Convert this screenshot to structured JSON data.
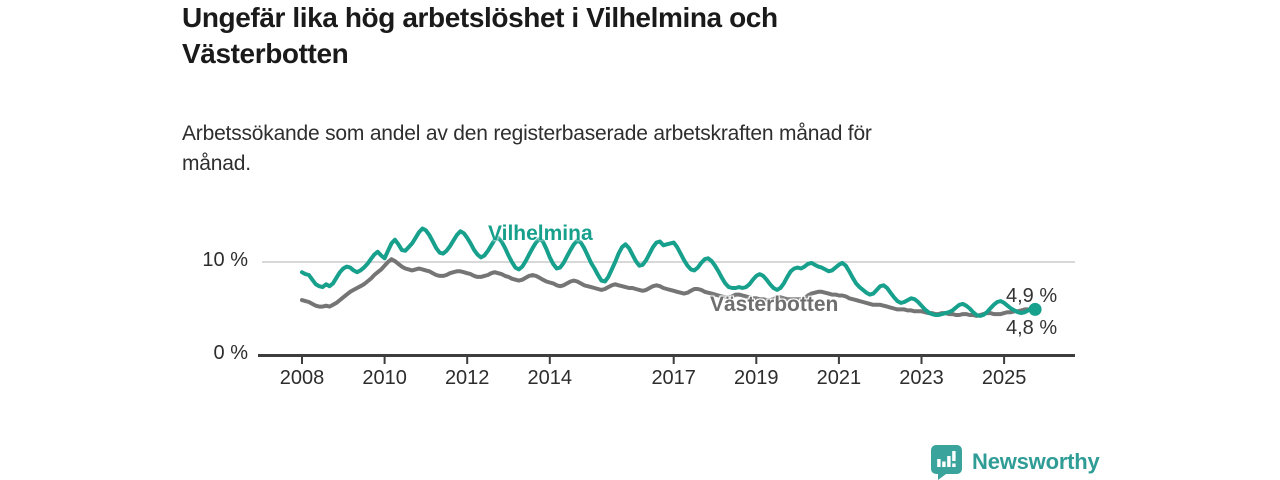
{
  "header": {
    "title_lines": [
      "Ungefär lika hög arbetslöshet i Vilhelmina och",
      "Västerbotten"
    ],
    "subtitle_lines": [
      "Arbetssökande som andel av den registerbaserade arbetskraften månad för",
      "månad."
    ]
  },
  "colors": {
    "vilhelmina_line": "#17a08c",
    "vasterbotten_line": "#757575",
    "gridline": "#cccccc",
    "axis": "#3d3d3d",
    "title_text": "#1a1a1a",
    "logo_teal": "#2f9d96"
  },
  "chart": {
    "y_ticks": [
      {
        "label": "10 %",
        "value": 10
      },
      {
        "label": "0 %",
        "value": 0
      }
    ],
    "x_ticks": [
      {
        "label": "2008",
        "year": 2008
      },
      {
        "label": "2010",
        "year": 2010
      },
      {
        "label": "2012",
        "year": 2012
      },
      {
        "label": "2014",
        "year": 2014
      },
      {
        "label": "2017",
        "year": 2017
      },
      {
        "label": "2019",
        "year": 2019
      },
      {
        "label": "2021",
        "year": 2021
      },
      {
        "label": "2023",
        "year": 2023
      },
      {
        "label": "2025",
        "year": 2025
      }
    ],
    "series_labels": {
      "vilhelmina": "Vilhelmina",
      "vasterbotten": "Västerbotten"
    },
    "end_labels": {
      "vilhelmina": "4,9 %",
      "vasterbotten": "4,8 %"
    }
  },
  "branding": {
    "name": "Newsworthy",
    "logo_icon": "speech-bubble-bar-chart"
  },
  "chart_data": {
    "type": "line",
    "title": "Ungefär lika hög arbetslöshet i Vilhelmina och Västerbotten",
    "subtitle": "Arbetssökande som andel av den registerbaserade arbetskraften månad för månad.",
    "unit": "%",
    "frequency": "monthly",
    "x_start": {
      "year": 2008,
      "month": 1
    },
    "x_end": {
      "year": 2025,
      "month": 10
    },
    "ylim": [
      0,
      14
    ],
    "grid_values": [
      10
    ],
    "latest_values": {
      "Vilhelmina": 4.9,
      "Västerbotten": 4.8
    },
    "series": [
      {
        "name": "Vilhelmina",
        "color": "#17a08c",
        "values": [
          8.9,
          8.7,
          8.6,
          8.1,
          7.6,
          7.4,
          7.3,
          7.6,
          7.4,
          7.7,
          8.3,
          8.9,
          9.3,
          9.5,
          9.4,
          9.1,
          8.9,
          9.1,
          9.4,
          9.8,
          10.3,
          10.8,
          11.1,
          10.7,
          10.4,
          11.2,
          12.0,
          12.4,
          11.9,
          11.3,
          11.2,
          11.6,
          12.0,
          12.6,
          13.2,
          13.6,
          13.4,
          12.9,
          12.2,
          11.5,
          11.0,
          10.9,
          11.2,
          11.7,
          12.3,
          12.9,
          13.3,
          13.1,
          12.6,
          12.0,
          11.3,
          10.8,
          10.5,
          10.7,
          11.2,
          11.8,
          12.4,
          12.6,
          12.2,
          11.5,
          10.7,
          10.0,
          9.4,
          9.2,
          9.5,
          10.1,
          10.8,
          11.5,
          12.1,
          12.5,
          12.2,
          11.4,
          10.5,
          9.8,
          9.3,
          9.4,
          9.9,
          10.6,
          11.3,
          11.9,
          12.3,
          12.1,
          11.5,
          10.7,
          9.9,
          9.3,
          8.6,
          8.0,
          7.9,
          8.4,
          9.2,
          10.0,
          10.9,
          11.6,
          11.9,
          11.5,
          10.8,
          10.1,
          9.6,
          9.7,
          10.2,
          10.9,
          11.6,
          12.1,
          12.2,
          11.8,
          11.9,
          12.0,
          12.1,
          11.6,
          10.9,
          10.2,
          9.6,
          9.2,
          9.1,
          9.4,
          9.9,
          10.3,
          10.4,
          10.1,
          9.6,
          9.0,
          8.3,
          7.7,
          7.3,
          7.2,
          7.2,
          7.3,
          7.2,
          7.3,
          7.6,
          8.1,
          8.5,
          8.7,
          8.5,
          8.1,
          7.6,
          7.2,
          7.0,
          7.2,
          7.7,
          8.4,
          9.0,
          9.3,
          9.4,
          9.3,
          9.5,
          9.8,
          9.9,
          9.7,
          9.5,
          9.4,
          9.2,
          9.0,
          9.1,
          9.4,
          9.7,
          9.9,
          9.6,
          9.0,
          8.3,
          7.7,
          7.3,
          7.0,
          6.7,
          6.5,
          6.6,
          7.0,
          7.4,
          7.5,
          7.2,
          6.7,
          6.2,
          5.8,
          5.6,
          5.7,
          5.9,
          6.1,
          6.0,
          5.7,
          5.3,
          4.9,
          4.6,
          4.4,
          4.3,
          4.3,
          4.4,
          4.5,
          4.6,
          4.8,
          5.1,
          5.4,
          5.5,
          5.3,
          5.0,
          4.6,
          4.3,
          4.2,
          4.3,
          4.6,
          5.0,
          5.4,
          5.7,
          5.8,
          5.6,
          5.3,
          5.0,
          4.8,
          4.6,
          4.5,
          4.6,
          4.8,
          5.0,
          4.9
        ]
      },
      {
        "name": "Västerbotten",
        "color": "#757575",
        "values": [
          5.9,
          5.8,
          5.7,
          5.5,
          5.3,
          5.2,
          5.2,
          5.3,
          5.2,
          5.4,
          5.6,
          5.9,
          6.2,
          6.5,
          6.8,
          7.0,
          7.2,
          7.4,
          7.6,
          7.9,
          8.2,
          8.6,
          8.9,
          9.2,
          9.6,
          10.0,
          10.3,
          10.1,
          9.8,
          9.5,
          9.3,
          9.2,
          9.1,
          9.2,
          9.3,
          9.2,
          9.1,
          9.0,
          8.8,
          8.6,
          8.5,
          8.5,
          8.6,
          8.8,
          8.9,
          9.0,
          9.0,
          8.9,
          8.8,
          8.7,
          8.5,
          8.4,
          8.4,
          8.5,
          8.6,
          8.8,
          8.9,
          8.8,
          8.7,
          8.5,
          8.4,
          8.2,
          8.1,
          8.0,
          8.1,
          8.3,
          8.5,
          8.6,
          8.5,
          8.3,
          8.1,
          7.9,
          7.8,
          7.7,
          7.5,
          7.4,
          7.5,
          7.7,
          7.9,
          8.0,
          7.9,
          7.7,
          7.5,
          7.4,
          7.3,
          7.2,
          7.1,
          7.0,
          7.1,
          7.3,
          7.5,
          7.6,
          7.5,
          7.4,
          7.3,
          7.2,
          7.2,
          7.1,
          7.0,
          6.9,
          7.0,
          7.2,
          7.4,
          7.5,
          7.4,
          7.2,
          7.1,
          7.0,
          6.9,
          6.8,
          6.7,
          6.6,
          6.7,
          6.9,
          7.1,
          7.1,
          7.0,
          6.8,
          6.7,
          6.6,
          6.5,
          6.4,
          6.3,
          6.2,
          6.2,
          6.3,
          6.5,
          6.5,
          6.4,
          6.3,
          6.2,
          6.1,
          6.1,
          6.0,
          6.0,
          5.9,
          5.9,
          6.0,
          6.2,
          6.2,
          6.1,
          6.0,
          6.0,
          6.0,
          6.0,
          6.0,
          6.1,
          6.4,
          6.6,
          6.7,
          6.8,
          6.8,
          6.7,
          6.6,
          6.5,
          6.5,
          6.4,
          6.4,
          6.3,
          6.1,
          6.0,
          5.9,
          5.8,
          5.7,
          5.6,
          5.5,
          5.4,
          5.4,
          5.4,
          5.3,
          5.2,
          5.1,
          5.0,
          4.9,
          4.9,
          4.9,
          4.8,
          4.8,
          4.7,
          4.7,
          4.7,
          4.6,
          4.5,
          4.5,
          4.4,
          4.4,
          4.5,
          4.5,
          4.4,
          4.4,
          4.3,
          4.3,
          4.4,
          4.4,
          4.3,
          4.3,
          4.2,
          4.3,
          4.4,
          4.5,
          4.5,
          4.4,
          4.4,
          4.4,
          4.5,
          4.6,
          4.6,
          4.7,
          4.7,
          4.8,
          4.9,
          4.9,
          4.8,
          4.8
        ]
      }
    ]
  }
}
